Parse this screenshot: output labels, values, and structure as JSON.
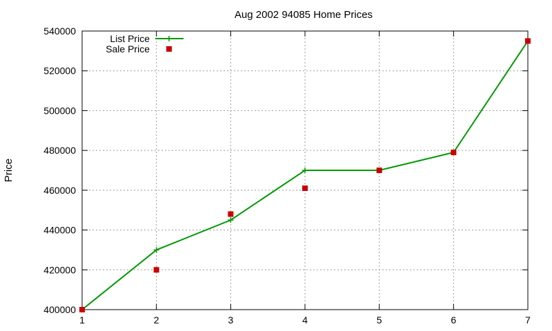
{
  "chart_data": {
    "type": "line",
    "title": "Aug 2002 94085 Home Prices",
    "xlabel": "",
    "ylabel": "Price",
    "x": [
      1,
      2,
      3,
      4,
      5,
      6,
      7
    ],
    "xlim": [
      1,
      7
    ],
    "ylim": [
      400000,
      540000
    ],
    "xticks": [
      "1",
      "2",
      "3",
      "4",
      "5",
      "6",
      "7"
    ],
    "yticks": [
      "400000",
      "420000",
      "440000",
      "460000",
      "480000",
      "500000",
      "520000",
      "540000"
    ],
    "grid": true,
    "legend_position": "top-left",
    "series": [
      {
        "name": "List Price",
        "style": "line-with-plus-markers",
        "color": "#009900",
        "values": [
          400000,
          430000,
          445000,
          470000,
          470000,
          479000,
          535000
        ]
      },
      {
        "name": "Sale Price",
        "style": "square-markers",
        "color": "#cc0000",
        "values": [
          400000,
          420000,
          448000,
          461000,
          470000,
          479000,
          535000
        ]
      }
    ]
  }
}
